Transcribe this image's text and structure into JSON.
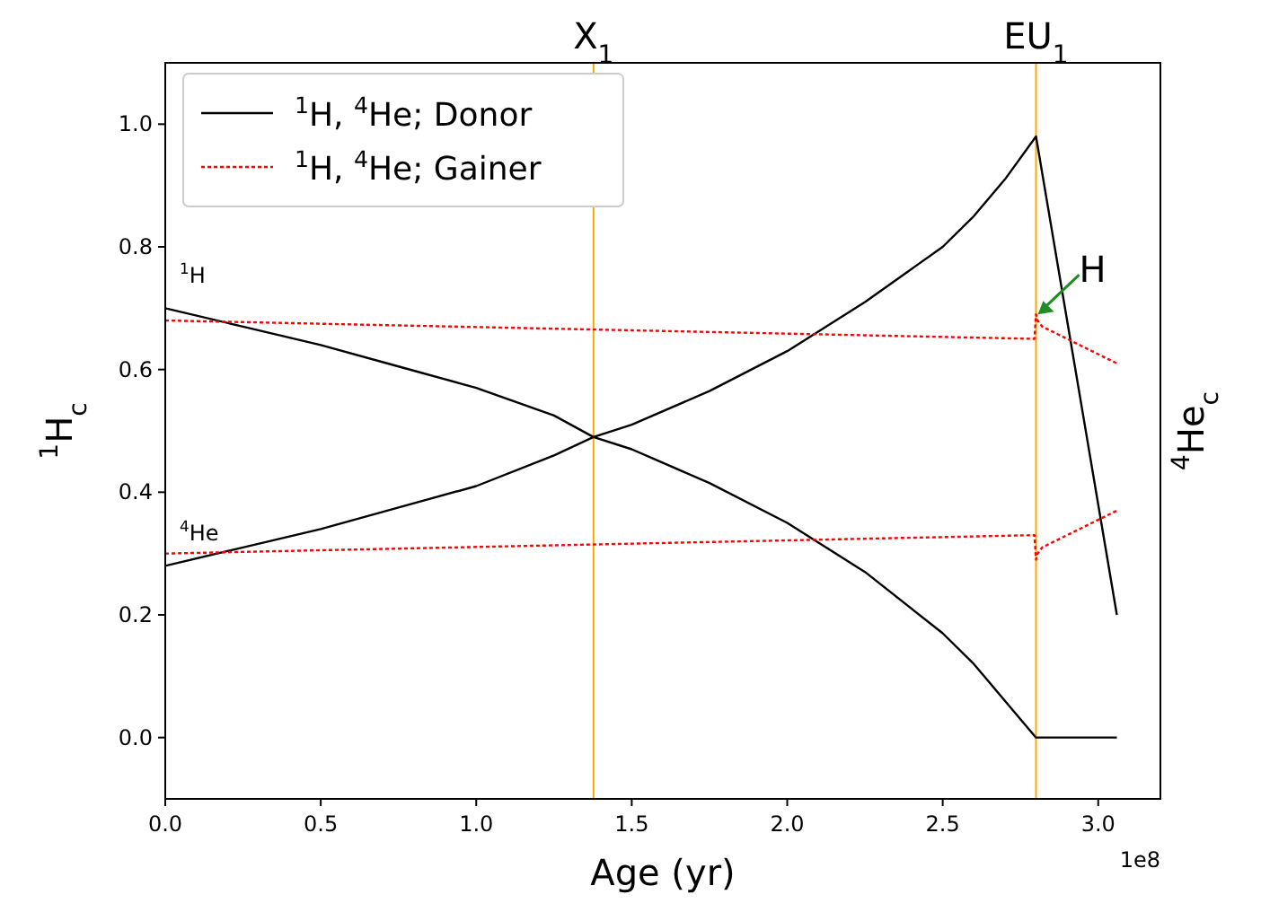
{
  "chart_data": {
    "type": "line",
    "xlabel": "Age (yr)",
    "ylabel": "$^{1}$H$_{c}$",
    "y2label": "$^{4}$He$_{c}$",
    "xlim": [
      0,
      3.2
    ],
    "ylim": [
      -0.1,
      1.1
    ],
    "xticks": [
      {
        "value": 0,
        "label": "0.0"
      },
      0.5,
      {
        "value": 1,
        "label": "1.0"
      },
      1.5,
      {
        "value": 2,
        "label": "2.0"
      },
      2.5,
      {
        "value": 3,
        "label": "3.0"
      }
    ],
    "yticks": [
      {
        "value": 0,
        "label": "0.0"
      },
      0.2,
      0.4,
      0.6,
      0.8,
      {
        "value": 1,
        "label": "1.0"
      }
    ],
    "grid": false,
    "legend": "top left",
    "series": [
      {
        "name": "$^{1}$H, $^{4}$He; Donor",
        "color": "#000000",
        "line_style": "solid",
        "x": [
          0,
          0.25,
          0.5,
          0.75,
          1.0,
          1.25,
          1.377,
          1.5,
          1.75,
          2.0,
          2.25,
          2.5,
          2.6,
          2.7,
          2.8,
          3.06
        ],
        "values": [
          0.7,
          0.67,
          0.64,
          0.605,
          0.57,
          0.525,
          0.49,
          0.47,
          0.415,
          0.35,
          0.27,
          0.17,
          0.12,
          0.06,
          0.0,
          0.0
        ]
      },
      {
        "color": "#000000",
        "line_style": "solid",
        "x": [
          0,
          0.25,
          0.5,
          0.75,
          1.0,
          1.25,
          1.377,
          1.5,
          1.75,
          2.0,
          2.25,
          2.5,
          2.6,
          2.7,
          2.8,
          3.06
        ],
        "values": [
          0.28,
          0.31,
          0.34,
          0.375,
          0.41,
          0.46,
          0.49,
          0.51,
          0.565,
          0.63,
          0.71,
          0.8,
          0.85,
          0.91,
          0.98,
          0.2
        ]
      },
      {
        "name": "$^{1}$H, $^{4}$He; Gainer",
        "color": "#ff0000",
        "line_style": "dotted",
        "x": [
          0,
          2.795,
          2.8,
          2.805,
          2.82,
          3.06
        ],
        "values": [
          0.68,
          0.65,
          0.69,
          0.68,
          0.67,
          0.61
        ]
      },
      {
        "color": "#ff0000",
        "line_style": "dotted",
        "x": [
          0,
          2.795,
          2.8,
          2.805,
          2.82,
          3.06
        ],
        "values": [
          0.3,
          0.33,
          0.29,
          0.3,
          0.31,
          0.37
        ]
      }
    ],
    "ref_lines": [
      {
        "axis": "x",
        "value": 1.377,
        "label": "X$_{1}$",
        "color": "#ffa500"
      },
      {
        "axis": "x",
        "value": 2.8,
        "label": "EU$_{1}$",
        "color": "#ffa500"
      }
    ],
    "annotations": [
      "$^{1}$H",
      "$^{4}$He",
      {
        "text": "H",
        "x": 2.8,
        "y": 0.69
      },
      "1e8"
    ]
  }
}
